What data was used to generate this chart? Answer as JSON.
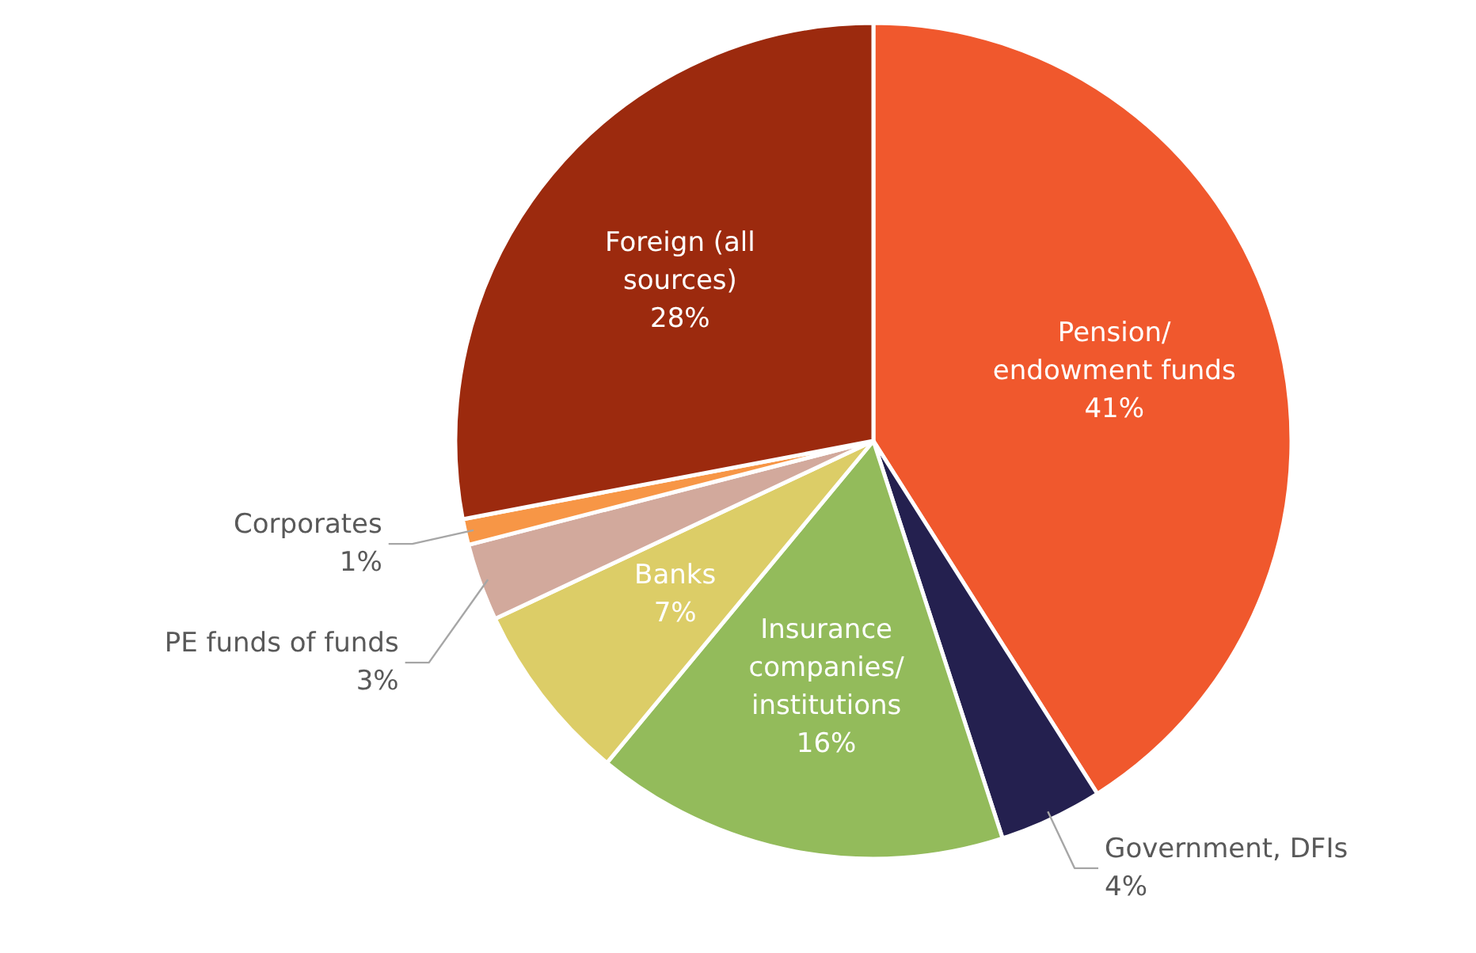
{
  "chart_data": {
    "type": "pie",
    "categories": [
      "Pension/ endowment funds",
      "Government, DFIs",
      "Insurance companies/ institutions",
      "Banks",
      "PE funds of funds",
      "Corporates",
      "Foreign (all sources)"
    ],
    "values": [
      41,
      4,
      16,
      7,
      3,
      1,
      28
    ],
    "colors": [
      "#f0582d",
      "#24204f",
      "#93bb5b",
      "#dccd67",
      "#d2a99c",
      "#f79646",
      "#9c2a0e"
    ],
    "value_labels": [
      "41%",
      "4%",
      "16%",
      "7%",
      "3%",
      "1%",
      "28%"
    ]
  }
}
